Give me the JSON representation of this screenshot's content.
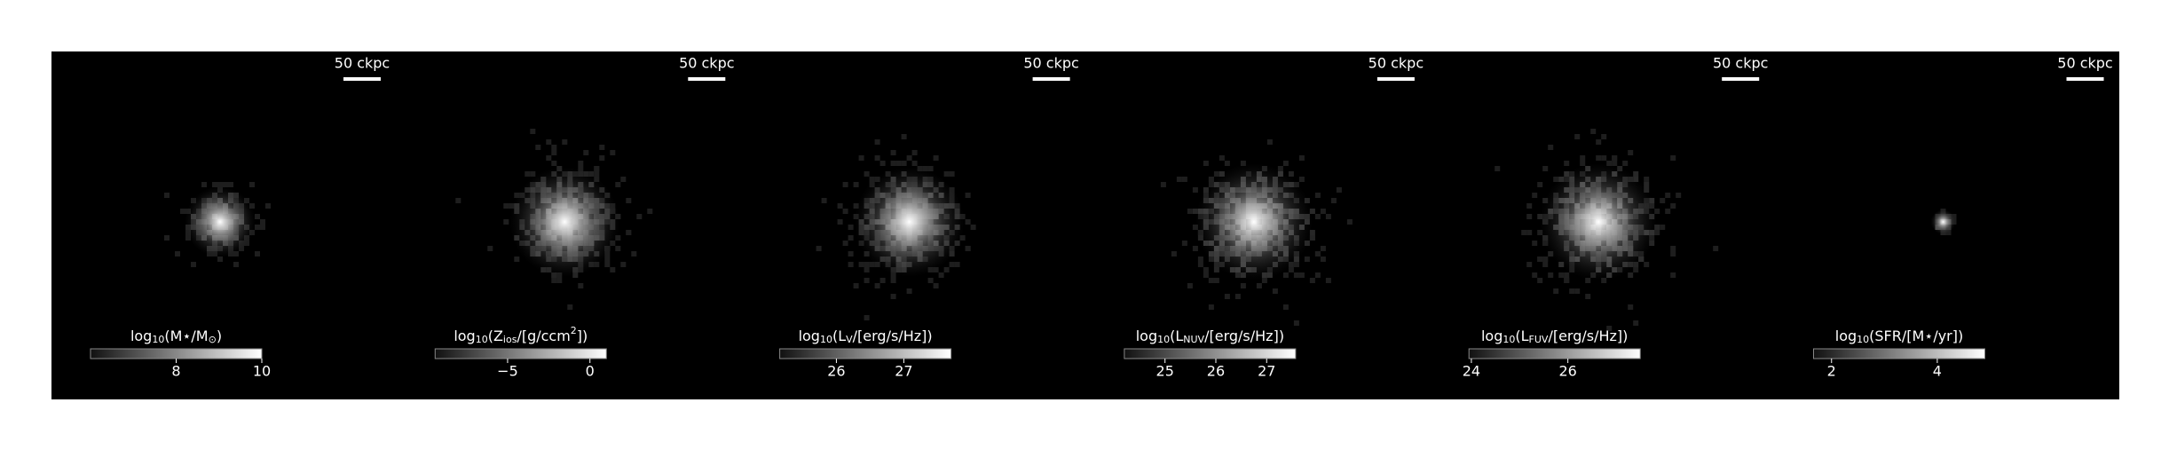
{
  "panels": [
    {
      "scalebar": "50 ckpc",
      "label": [
        {
          "text": "log"
        },
        {
          "text": "10",
          "sub": true
        },
        {
          "text": "(M⋆/M"
        },
        {
          "text": "⊙",
          "sub": true
        },
        {
          "text": ")"
        }
      ],
      "clim": [
        6,
        10
      ],
      "ticks": [
        8,
        10
      ]
    },
    {
      "scalebar": "50 ckpc",
      "label": [
        {
          "text": "log"
        },
        {
          "text": "10",
          "sub": true
        },
        {
          "text": "(Z"
        },
        {
          "text": "ios",
          "sub": true
        },
        {
          "text": "/[g/ccm"
        },
        {
          "text": "2",
          "sup": true
        },
        {
          "text": "])"
        }
      ],
      "clim": [
        -9.4,
        1
      ],
      "ticks": [
        {
          "value": -5,
          "label": "−5"
        },
        0
      ]
    },
    {
      "scalebar": "50 ckpc",
      "label": [
        {
          "text": "log"
        },
        {
          "text": "10",
          "sub": true
        },
        {
          "text": "(L"
        },
        {
          "text": "V",
          "sub": true
        },
        {
          "text": "/[erg/s/Hz])"
        }
      ],
      "clim": [
        25.16,
        27.7
      ],
      "ticks": [
        26,
        27
      ]
    },
    {
      "scalebar": "50 ckpc",
      "label": [
        {
          "text": "log"
        },
        {
          "text": "10",
          "sub": true
        },
        {
          "text": "(L"
        },
        {
          "text": "NUV",
          "sub": true
        },
        {
          "text": "/[erg/s/Hz])"
        }
      ],
      "clim": [
        24.2,
        27.57
      ],
      "ticks": [
        25,
        26,
        27
      ]
    },
    {
      "scalebar": "50 ckpc",
      "label": [
        {
          "text": "log"
        },
        {
          "text": "10",
          "sub": true
        },
        {
          "text": "(L"
        },
        {
          "text": "FUV",
          "sub": true
        },
        {
          "text": "/[erg/s/Hz])"
        }
      ],
      "clim": [
        23.95,
        27.5
      ],
      "ticks": [
        24,
        26
      ]
    },
    {
      "scalebar": "50 ckpc",
      "label": [
        {
          "text": "log"
        },
        {
          "text": "10",
          "sub": true
        },
        {
          "text": "(SFR/[M⋆/yr])"
        }
      ],
      "clim": [
        1.66,
        4.9
      ],
      "ticks": [
        2,
        4
      ]
    }
  ]
}
